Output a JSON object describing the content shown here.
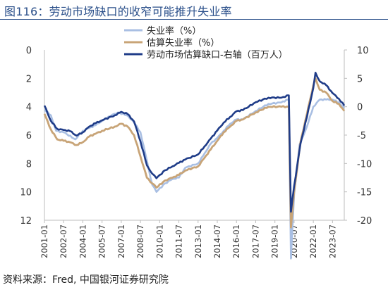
{
  "header": {
    "title": "图116：劳动市场缺口的收窄可能推升失业率"
  },
  "footer": {
    "source": "资料来源：Fred,  中国银河证券研究院"
  },
  "chart_data": {
    "type": "line",
    "title": "",
    "x_ticks": [
      "2001-01",
      "2002-07",
      "2004-01",
      "2005-07",
      "2007-01",
      "2008-07",
      "2010-01",
      "2011-07",
      "2013-01",
      "2014-07",
      "2016-01",
      "2017-07",
      "2019-01",
      "2020-07",
      "2022-01",
      "2023-07"
    ],
    "left_axis": {
      "ylim": [
        0,
        12
      ],
      "inverted": true,
      "ticks": [
        "0",
        "2",
        "4",
        "6",
        "8",
        "10",
        "12"
      ]
    },
    "right_axis": {
      "ylim": [
        -20,
        10
      ],
      "ticks": [
        "10",
        "5",
        "0",
        "-5",
        "-10",
        "-15",
        "-20"
      ]
    },
    "grid": false,
    "legend": {
      "placement": "top"
    },
    "x_range": [
      "2001-01",
      "2024-06"
    ],
    "series": [
      {
        "name": "失业率（%）",
        "axis": "left",
        "color": "#a9bfe3",
        "points": [
          [
            "2001-01",
            4.2
          ],
          [
            "2001-07",
            4.6
          ],
          [
            "2001-12",
            5.7
          ],
          [
            "2002-07",
            5.8
          ],
          [
            "2003-06",
            6.3
          ],
          [
            "2004-01",
            5.7
          ],
          [
            "2004-07",
            5.5
          ],
          [
            "2005-01",
            5.3
          ],
          [
            "2005-07",
            5.0
          ],
          [
            "2006-01",
            4.7
          ],
          [
            "2006-10",
            4.4
          ],
          [
            "2007-06",
            4.6
          ],
          [
            "2007-12",
            5.0
          ],
          [
            "2008-07",
            5.8
          ],
          [
            "2009-01",
            7.8
          ],
          [
            "2009-06",
            9.5
          ],
          [
            "2009-10",
            10.0
          ],
          [
            "2010-06",
            9.4
          ],
          [
            "2011-01",
            9.1
          ],
          [
            "2011-07",
            9.0
          ],
          [
            "2012-01",
            8.3
          ],
          [
            "2013-01",
            8.0
          ],
          [
            "2013-07",
            7.3
          ],
          [
            "2014-01",
            6.6
          ],
          [
            "2014-07",
            6.2
          ],
          [
            "2015-01",
            5.7
          ],
          [
            "2015-07",
            5.2
          ],
          [
            "2016-01",
            4.9
          ],
          [
            "2016-07",
            4.9
          ],
          [
            "2017-07",
            4.3
          ],
          [
            "2018-07",
            3.8
          ],
          [
            "2019-07",
            3.7
          ],
          [
            "2020-01",
            3.5
          ],
          [
            "2020-02",
            3.5
          ],
          [
            "2020-04",
            14.7
          ],
          [
            "2020-07",
            10.2
          ],
          [
            "2020-12",
            6.7
          ],
          [
            "2021-07",
            5.4
          ],
          [
            "2022-01",
            4.0
          ],
          [
            "2022-07",
            3.5
          ],
          [
            "2023-01",
            3.5
          ],
          [
            "2023-07",
            3.5
          ],
          [
            "2024-01",
            3.7
          ],
          [
            "2024-06",
            4.1
          ]
        ]
      },
      {
        "name": "估算失业率（%）",
        "axis": "left",
        "color": "#c8a477",
        "points": [
          [
            "2001-01",
            4.5
          ],
          [
            "2001-07",
            5.6
          ],
          [
            "2002-01",
            6.3
          ],
          [
            "2002-07",
            6.4
          ],
          [
            "2003-01",
            6.5
          ],
          [
            "2003-07",
            6.7
          ],
          [
            "2004-01",
            6.5
          ],
          [
            "2004-07",
            6.1
          ],
          [
            "2005-01",
            5.9
          ],
          [
            "2005-07",
            5.7
          ],
          [
            "2006-07",
            5.4
          ],
          [
            "2007-01",
            5.2
          ],
          [
            "2007-07",
            5.4
          ],
          [
            "2008-01",
            6.0
          ],
          [
            "2008-07",
            7.5
          ],
          [
            "2009-01",
            9.0
          ],
          [
            "2009-06",
            9.4
          ],
          [
            "2009-10",
            9.7
          ],
          [
            "2010-06",
            9.2
          ],
          [
            "2011-01",
            9.0
          ],
          [
            "2011-07",
            8.8
          ],
          [
            "2012-01",
            8.5
          ],
          [
            "2013-01",
            8.2
          ],
          [
            "2013-07",
            7.6
          ],
          [
            "2014-01",
            7.0
          ],
          [
            "2014-07",
            6.4
          ],
          [
            "2015-01",
            5.8
          ],
          [
            "2015-07",
            5.4
          ],
          [
            "2016-01",
            5.0
          ],
          [
            "2016-07",
            4.9
          ],
          [
            "2017-07",
            4.4
          ],
          [
            "2018-07",
            4.0
          ],
          [
            "2019-07",
            4.0
          ],
          [
            "2020-02",
            4.0
          ],
          [
            "2020-04",
            12.5
          ],
          [
            "2020-07",
            10.0
          ],
          [
            "2021-01",
            6.5
          ],
          [
            "2021-07",
            4.5
          ],
          [
            "2022-01",
            2.5
          ],
          [
            "2022-03",
            2.0
          ],
          [
            "2022-07",
            2.8
          ],
          [
            "2023-01",
            3.0
          ],
          [
            "2023-07",
            3.6
          ],
          [
            "2024-01",
            3.8
          ],
          [
            "2024-06",
            4.3
          ]
        ]
      },
      {
        "name": "劳动市场估算缺口-右轴（百万人）",
        "axis": "right",
        "color": "#1f3c88",
        "points": [
          [
            "2001-01",
            0.2
          ],
          [
            "2001-07",
            -2.5
          ],
          [
            "2002-01",
            -3.9
          ],
          [
            "2002-07",
            -4.1
          ],
          [
            "2003-01",
            -4.3
          ],
          [
            "2003-07",
            -5.1
          ],
          [
            "2004-01",
            -4.5
          ],
          [
            "2004-07",
            -3.5
          ],
          [
            "2005-01",
            -2.9
          ],
          [
            "2005-07",
            -2.4
          ],
          [
            "2006-07",
            -1.5
          ],
          [
            "2007-01",
            -0.9
          ],
          [
            "2007-07",
            -1.3
          ],
          [
            "2008-01",
            -2.6
          ],
          [
            "2008-07",
            -6.1
          ],
          [
            "2009-01",
            -10.3
          ],
          [
            "2009-06",
            -11.8
          ],
          [
            "2009-10",
            -12.6
          ],
          [
            "2010-06",
            -11.2
          ],
          [
            "2011-01",
            -10.5
          ],
          [
            "2011-07",
            -9.9
          ],
          [
            "2012-01",
            -9.3
          ],
          [
            "2013-01",
            -8.4
          ],
          [
            "2013-07",
            -7.0
          ],
          [
            "2014-01",
            -5.6
          ],
          [
            "2014-07",
            -4.2
          ],
          [
            "2015-01",
            -2.8
          ],
          [
            "2015-07",
            -1.8
          ],
          [
            "2016-01",
            -0.8
          ],
          [
            "2016-07",
            -0.6
          ],
          [
            "2017-07",
            0.8
          ],
          [
            "2018-07",
            1.6
          ],
          [
            "2019-07",
            1.6
          ],
          [
            "2020-02",
            2.0
          ],
          [
            "2020-04",
            -18.5
          ],
          [
            "2020-07",
            -14.0
          ],
          [
            "2021-01",
            -6.5
          ],
          [
            "2021-07",
            -1.8
          ],
          [
            "2022-01",
            3.3
          ],
          [
            "2022-03",
            6.0
          ],
          [
            "2022-07",
            4.5
          ],
          [
            "2023-01",
            3.8
          ],
          [
            "2023-07",
            2.4
          ],
          [
            "2024-01",
            1.4
          ],
          [
            "2024-06",
            0.2
          ]
        ]
      }
    ]
  }
}
